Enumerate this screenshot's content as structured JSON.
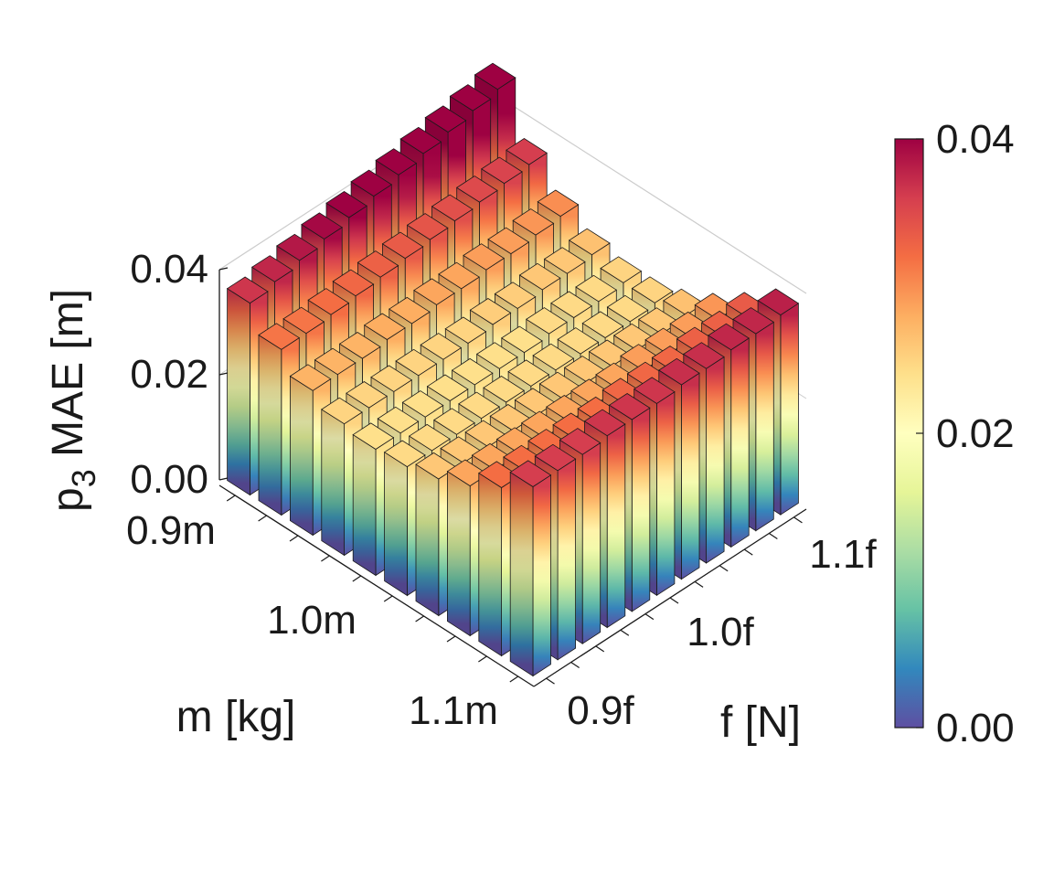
{
  "chart_data": {
    "type": "bar3d",
    "title": "",
    "zlabel_main": "p",
    "zlabel_sub": "3",
    "zlabel_rest": " MAE [m]",
    "m_axis_label": "m [kg]",
    "f_axis_label": "f [N]",
    "m_ticks": [
      "0.9m",
      "1.0m",
      "1.1m"
    ],
    "f_ticks": [
      "0.9f",
      "1.0f",
      "1.1f"
    ],
    "z_ticks": [
      "0.00",
      "0.02",
      "0.04"
    ],
    "zlim": [
      0,
      0.04
    ],
    "colorbar": {
      "ticks": [
        "0.00",
        "0.02",
        "0.04"
      ],
      "range": [
        0,
        0.04
      ],
      "colormap": "Spectral"
    },
    "grid_shape": [
      10,
      11
    ],
    "heights": [
      [
        0.0365,
        0.0375,
        0.0385,
        0.0395,
        0.0405,
        0.0415,
        0.0425,
        0.0435,
        0.0445,
        0.0455,
        0.0465
      ],
      [
        0.0315,
        0.0315,
        0.032,
        0.0325,
        0.033,
        0.0335,
        0.034,
        0.0345,
        0.035,
        0.0355,
        0.036
      ],
      [
        0.0275,
        0.0275,
        0.0275,
        0.028,
        0.028,
        0.0285,
        0.0285,
        0.029,
        0.029,
        0.0295,
        0.03
      ],
      [
        0.025,
        0.025,
        0.025,
        0.025,
        0.025,
        0.025,
        0.0255,
        0.0255,
        0.026,
        0.026,
        0.0265
      ],
      [
        0.024,
        0.024,
        0.024,
        0.024,
        0.024,
        0.024,
        0.024,
        0.0245,
        0.0245,
        0.0245,
        0.025
      ],
      [
        0.0245,
        0.0245,
        0.0245,
        0.0245,
        0.0245,
        0.0245,
        0.0245,
        0.0245,
        0.0245,
        0.0245,
        0.025
      ],
      [
        0.026,
        0.026,
        0.026,
        0.026,
        0.026,
        0.026,
        0.026,
        0.026,
        0.026,
        0.026,
        0.0265
      ],
      [
        0.0285,
        0.0285,
        0.0285,
        0.0285,
        0.0285,
        0.0285,
        0.0285,
        0.029,
        0.029,
        0.029,
        0.0295
      ],
      [
        0.032,
        0.032,
        0.032,
        0.032,
        0.032,
        0.0325,
        0.0325,
        0.0325,
        0.033,
        0.033,
        0.0335
      ],
      [
        0.036,
        0.036,
        0.036,
        0.0365,
        0.0365,
        0.0365,
        0.037,
        0.037,
        0.0375,
        0.0375,
        0.038
      ]
    ],
    "colors": {
      "low": "#5e4fa2",
      "high": "#9e0142",
      "edge": "#1a1a1a",
      "frame": "#cccccc"
    }
  }
}
